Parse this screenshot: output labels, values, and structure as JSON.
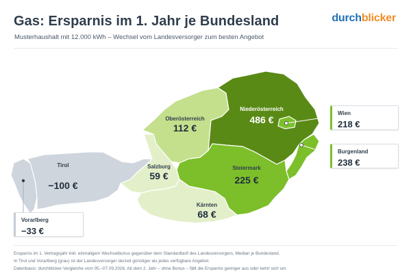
{
  "header": {
    "title": "Gas: Ersparnis im 1. Jahr je Bundesland",
    "subtitle": "Musterhaushalt mit 12.000 kWh – Wechsel vom Landesversorger zum besten Angebot",
    "brand_part1": "durch",
    "brand_part2": "blicker"
  },
  "colors": {
    "dark_green": "#5a8a16",
    "mid_green": "#7cbf2a",
    "light_green": "#c4e08c",
    "pale_green": "#e3efc9",
    "grey": "#cfd5dc",
    "brand_blue": "#1f6fb5",
    "brand_orange": "#f28c28"
  },
  "regions": {
    "niederoesterreich": {
      "name": "Niederösterreich",
      "value": "486 €",
      "savings_eur": 486
    },
    "oberoesterreich": {
      "name": "Oberösterreich",
      "value": "112 €",
      "savings_eur": 112
    },
    "salzburg": {
      "name": "Salzburg",
      "value": "59 €",
      "savings_eur": 59
    },
    "tirol": {
      "name": "Tirol",
      "value": "−100 €",
      "savings_eur": -100
    },
    "steiermark": {
      "name": "Steiermark",
      "value": "225 €",
      "savings_eur": 225
    },
    "kaernten": {
      "name": "Kärnten",
      "value": "68 €",
      "savings_eur": 68
    },
    "wien": {
      "name": "Wien",
      "value": "218 €",
      "savings_eur": 218
    },
    "burgenland": {
      "name": "Burgenland",
      "value": "238 €",
      "savings_eur": 238
    },
    "vorarlberg": {
      "name": "Vorarlberg",
      "value": "−33 €",
      "savings_eur": -33
    }
  },
  "footnotes": [
    "Ersparnis im 1. Vertragsjahr inkl. einmaligem Wechselbonus gegenüber dem Standardtarif des Landesversorgers, Median je Bundesland.",
    "In Tirol und Vorarlberg (grau) ist der Landesversorger derzeit günstiger als jedes verfügbare Angebot.",
    "Datenbasis: durchblicker-Vergleiche vom 05.–07.09.2026. Ab dem 2. Jahr – ohne Bonus – fällt die Ersparnis geringer aus oder kehrt sich um."
  ]
}
